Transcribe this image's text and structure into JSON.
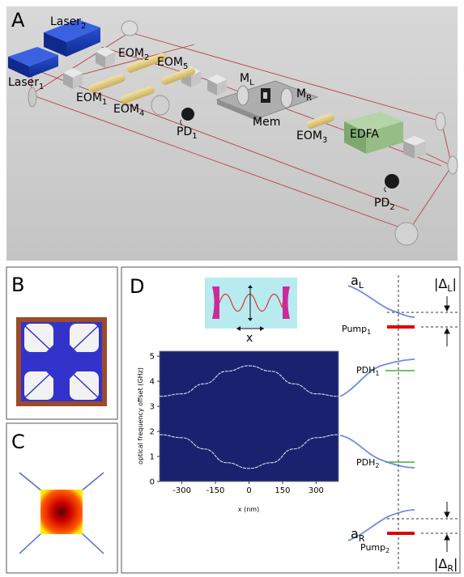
{
  "panels": {
    "A": "A",
    "B": "B",
    "C": "C",
    "D": "D"
  },
  "panelA": {
    "laser2": {
      "base": "Laser",
      "sub": "2"
    },
    "laser1": {
      "base": "Laser",
      "sub": "1"
    },
    "eom2": {
      "base": "EOM",
      "sub": "2"
    },
    "eom5": {
      "base": "EOM",
      "sub": "5"
    },
    "eom1": {
      "base": "EOM",
      "sub": "1"
    },
    "eom4": {
      "base": "EOM",
      "sub": "4"
    },
    "eom3": {
      "base": "EOM",
      "sub": "3"
    },
    "ml": {
      "base": "M",
      "sub": "L"
    },
    "mr": {
      "base": "M",
      "sub": "R"
    },
    "mem": "Mem",
    "edfa": "EDFA",
    "pd1": {
      "base": "PD",
      "sub": "1"
    },
    "pd2": {
      "base": "PD",
      "sub": "2"
    }
  },
  "panelD": {
    "inset_x_label": "x",
    "aL": {
      "base": "a",
      "sub": "L"
    },
    "aR": {
      "base": "a",
      "sub": "R"
    },
    "deltaL": {
      "base": "|Δ",
      "sub": "L",
      "end": "|"
    },
    "deltaR": {
      "base": "|Δ",
      "sub": "R",
      "end": "|"
    },
    "pump1": {
      "base": "Pump",
      "sub": "1"
    },
    "pump2": {
      "base": "Pump",
      "sub": "2"
    },
    "pdh1": {
      "base": "PDH",
      "sub": "1"
    },
    "pdh2": {
      "base": "PDH",
      "sub": "2"
    }
  },
  "colors": {
    "pump": "#e00000",
    "pdh": "#4caa3c",
    "curve": "#6d8ee0",
    "spectrum_bg": "#1a2270",
    "membrane": "#3333cc",
    "frame": "#9b4a2a"
  },
  "chart_data": {
    "type": "line",
    "title": "",
    "xlabel": "x (nm)",
    "ylabel": "optical frequency offset (GHz)",
    "xlim": [
      -400,
      400
    ],
    "ylim": [
      0,
      5.2
    ],
    "xticks": [
      "-300",
      "-150",
      "0",
      "150",
      "300"
    ],
    "yticks": [
      "0",
      "1",
      "2",
      "3",
      "4",
      "5"
    ],
    "series": [
      {
        "x": [
          -400,
          -300,
          -200,
          -100,
          0,
          100,
          200,
          300,
          400
        ],
        "y": [
          3.4,
          3.5,
          3.9,
          4.4,
          4.62,
          4.4,
          3.9,
          3.5,
          3.4
        ]
      },
      {
        "x": [
          -400,
          -300,
          -200,
          -100,
          0,
          100,
          200,
          300,
          400
        ],
        "y": [
          1.87,
          1.75,
          1.3,
          0.75,
          0.52,
          0.75,
          1.3,
          1.75,
          1.87
        ]
      }
    ]
  }
}
